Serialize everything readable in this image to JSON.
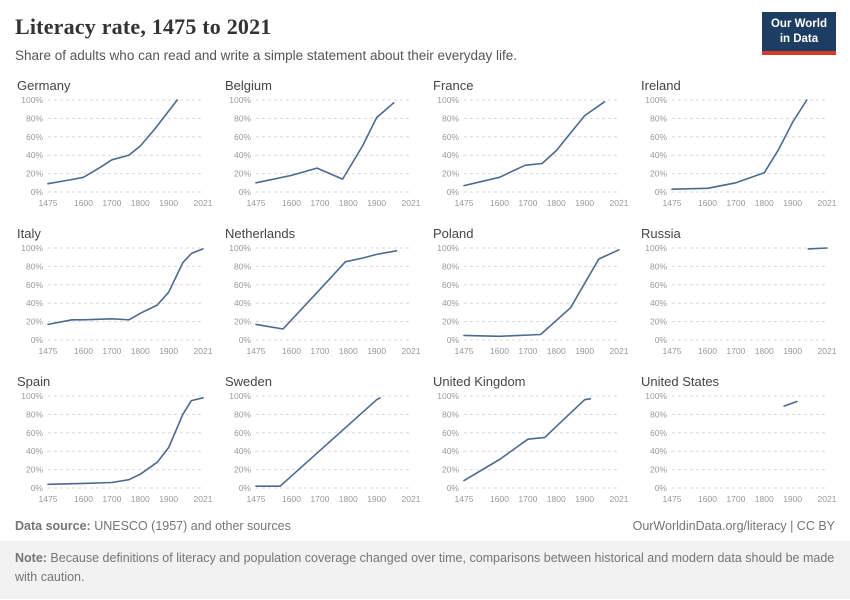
{
  "header": {
    "title": "Literacy rate, 1475 to 2021",
    "subtitle": "Share of adults who can read and write a simple statement about their everyday life.",
    "logo": {
      "line1": "Our World",
      "line2": "in Data",
      "bg_color": "#1d3d63",
      "accent_color": "#d7382c"
    }
  },
  "footer": {
    "source_label": "Data source:",
    "source_text": " UNESCO (1957) and other sources",
    "link_text": "OurWorldinData.org/literacy",
    "separator": " | ",
    "license": "CC BY",
    "note_label": "Note:",
    "note_text": " Because definitions of literacy and population coverage changed over time, comparisons between historical and modern data should be made with caution."
  },
  "chart_data": {
    "type": "line",
    "title": "Literacy rate, 1475 to 2021",
    "subtitle": "Share of adults who can read and write a simple statement about their everyday life.",
    "x_range": [
      1475,
      2021
    ],
    "x_ticks": [
      1475,
      1600,
      1700,
      1800,
      1900,
      2021
    ],
    "y_range": [
      0,
      100
    ],
    "y_ticks": [
      0,
      20,
      40,
      60,
      80,
      100
    ],
    "y_tick_labels": [
      "0%",
      "20%",
      "40%",
      "60%",
      "80%",
      "100%"
    ],
    "grid": "dashed-horizontal",
    "legend": "none",
    "line_color": "#4c6a8f",
    "grid_color": "#d9d9d9",
    "facets": [
      {
        "name": "Germany",
        "points": [
          [
            1475,
            9
          ],
          [
            1550,
            13
          ],
          [
            1600,
            16
          ],
          [
            1660,
            27
          ],
          [
            1700,
            35
          ],
          [
            1760,
            40
          ],
          [
            1800,
            50
          ],
          [
            1850,
            68
          ],
          [
            1900,
            88
          ],
          [
            1930,
            100
          ]
        ]
      },
      {
        "name": "Belgium",
        "points": [
          [
            1475,
            10
          ],
          [
            1600,
            18
          ],
          [
            1690,
            26
          ],
          [
            1780,
            14
          ],
          [
            1850,
            50
          ],
          [
            1900,
            81
          ],
          [
            1960,
            97
          ]
        ]
      },
      {
        "name": "France",
        "points": [
          [
            1475,
            7
          ],
          [
            1600,
            16
          ],
          [
            1690,
            29
          ],
          [
            1750,
            31
          ],
          [
            1800,
            45
          ],
          [
            1900,
            83
          ],
          [
            1970,
            98
          ]
        ]
      },
      {
        "name": "Ireland",
        "points": [
          [
            1475,
            3
          ],
          [
            1600,
            4
          ],
          [
            1700,
            10
          ],
          [
            1800,
            21
          ],
          [
            1850,
            46
          ],
          [
            1900,
            76
          ],
          [
            1950,
            100
          ]
        ]
      },
      {
        "name": "Italy",
        "points": [
          [
            1475,
            17
          ],
          [
            1560,
            22
          ],
          [
            1600,
            22
          ],
          [
            1700,
            23
          ],
          [
            1760,
            22
          ],
          [
            1800,
            29
          ],
          [
            1860,
            38
          ],
          [
            1900,
            52
          ],
          [
            1950,
            84
          ],
          [
            1980,
            94
          ],
          [
            2021,
            99
          ]
        ]
      },
      {
        "name": "Netherlands",
        "points": [
          [
            1475,
            17
          ],
          [
            1570,
            12
          ],
          [
            1700,
            55
          ],
          [
            1790,
            85
          ],
          [
            1850,
            89
          ],
          [
            1900,
            93
          ],
          [
            1970,
            97
          ]
        ]
      },
      {
        "name": "Poland",
        "points": [
          [
            1475,
            5
          ],
          [
            1600,
            4
          ],
          [
            1745,
            6
          ],
          [
            1850,
            35
          ],
          [
            1950,
            88
          ],
          [
            2021,
            98
          ]
        ]
      },
      {
        "name": "Russia",
        "points": [
          [
            1955,
            99
          ],
          [
            2021,
            100
          ]
        ]
      },
      {
        "name": "Spain",
        "points": [
          [
            1475,
            4
          ],
          [
            1600,
            5
          ],
          [
            1700,
            6
          ],
          [
            1760,
            9
          ],
          [
            1800,
            15
          ],
          [
            1860,
            28
          ],
          [
            1900,
            44
          ],
          [
            1950,
            80
          ],
          [
            1980,
            95
          ],
          [
            2021,
            98
          ]
        ]
      },
      {
        "name": "Sweden",
        "points": [
          [
            1475,
            2
          ],
          [
            1560,
            2
          ],
          [
            1900,
            96
          ],
          [
            1912,
            98
          ]
        ]
      },
      {
        "name": "United Kingdom",
        "points": [
          [
            1475,
            8
          ],
          [
            1600,
            31
          ],
          [
            1700,
            53
          ],
          [
            1760,
            55
          ],
          [
            1800,
            67
          ],
          [
            1900,
            96
          ],
          [
            1920,
            97
          ]
        ]
      },
      {
        "name": "United States",
        "points": [
          [
            1870,
            89
          ],
          [
            1915,
            94
          ]
        ]
      }
    ]
  }
}
